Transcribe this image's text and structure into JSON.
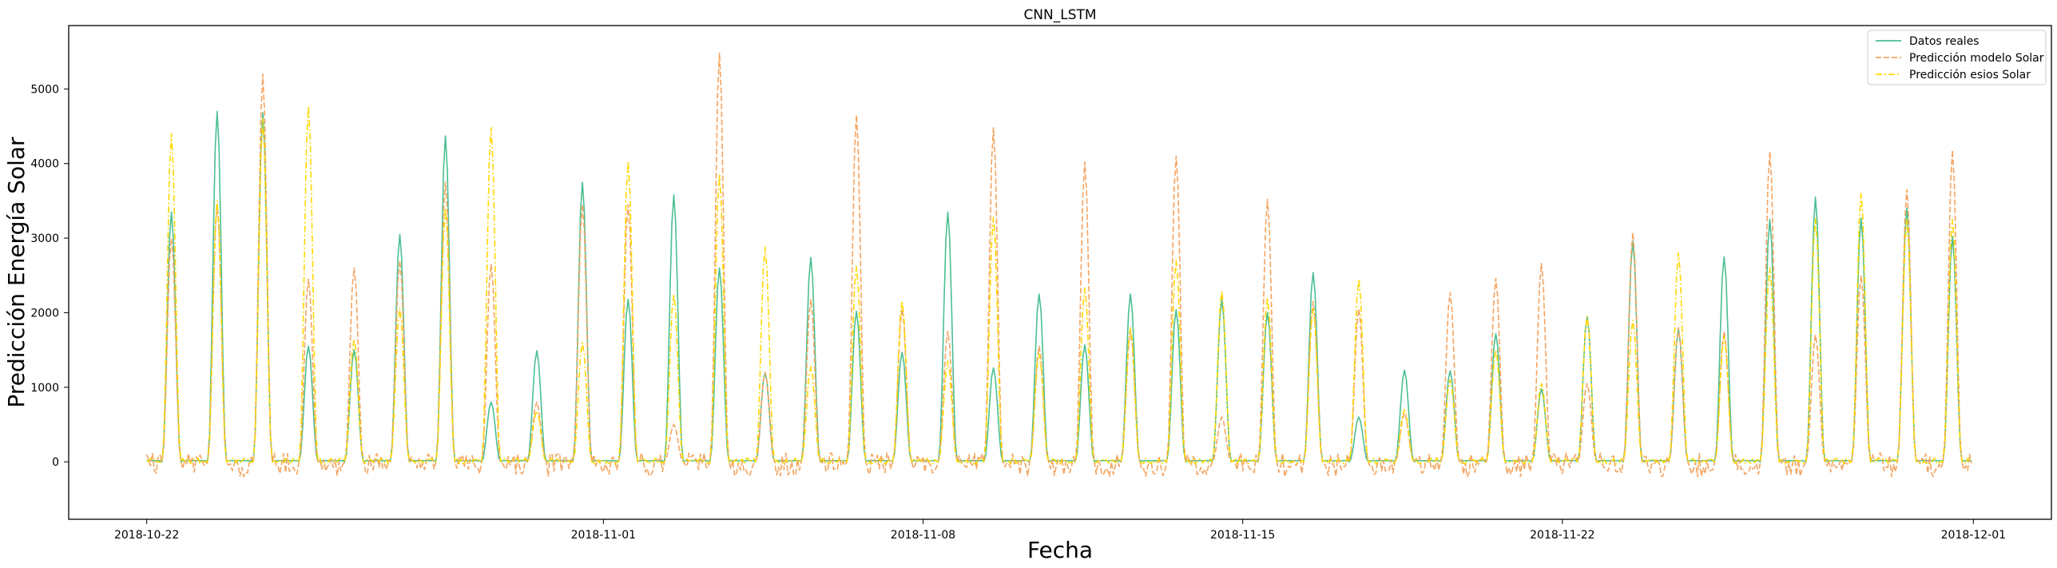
{
  "chart_data": {
    "type": "line",
    "title": "CNN_LSTM",
    "xlabel": "Fecha",
    "ylabel": "Predicción Energía Solar",
    "x_start": "2018-10-22",
    "hour_step": 1,
    "xlim": [
      "2018-10-20 07:00",
      "2018-12-02 17:00"
    ],
    "ylim": [
      -770,
      5850
    ],
    "x_ticks": [
      "2018-10-22",
      "2018-11-01",
      "2018-11-08",
      "2018-11-15",
      "2018-11-22",
      "2018-12-01"
    ],
    "y_ticks": [
      0,
      1000,
      2000,
      3000,
      4000,
      5000
    ],
    "legend": {
      "position": "top-right"
    },
    "grid": false,
    "series": [
      {
        "name": "Datos reales",
        "color": "#4bbf91",
        "style": "solid",
        "daily_peaks": [
          3350,
          4700,
          4680,
          1550,
          1500,
          3050,
          4370,
          800,
          1490,
          3750,
          2180,
          3580,
          2600,
          1200,
          2740,
          2020,
          1470,
          3350,
          1260,
          2250,
          1570,
          2250,
          2040,
          2180,
          2000,
          2540,
          600,
          1230,
          1220,
          1720,
          980,
          1950,
          2960,
          1780,
          2750,
          3250,
          3550,
          3270,
          3400,
          3020
        ]
      },
      {
        "name": "Predicción modelo Solar",
        "color": "#f4a460",
        "style": "dashed",
        "daily_peaks": [
          3000,
          3450,
          5200,
          2450,
          2600,
          2700,
          3750,
          2650,
          800,
          3450,
          3450,
          500,
          5480,
          1200,
          2180,
          4650,
          2050,
          1750,
          4480,
          1550,
          4020,
          1750,
          4100,
          600,
          3520,
          2150,
          2050,
          650,
          2270,
          2460,
          2660,
          1050,
          3070,
          1800,
          1750,
          4160,
          1700,
          2500,
          3650,
          4180
        ]
      },
      {
        "name": "Predicción esios Solar",
        "color": "#ffd700",
        "style": "dashdot",
        "daily_peaks": [
          4400,
          3500,
          4600,
          4770,
          1650,
          2060,
          3400,
          4480,
          680,
          1600,
          4030,
          2250,
          3860,
          2880,
          1280,
          2620,
          2160,
          1350,
          3280,
          1450,
          2330,
          1800,
          2700,
          2290,
          2200,
          2050,
          2450,
          700,
          1100,
          1500,
          1050,
          1950,
          1900,
          2800,
          1680,
          2600,
          3260,
          3600,
          3250,
          3250
        ]
      }
    ]
  }
}
